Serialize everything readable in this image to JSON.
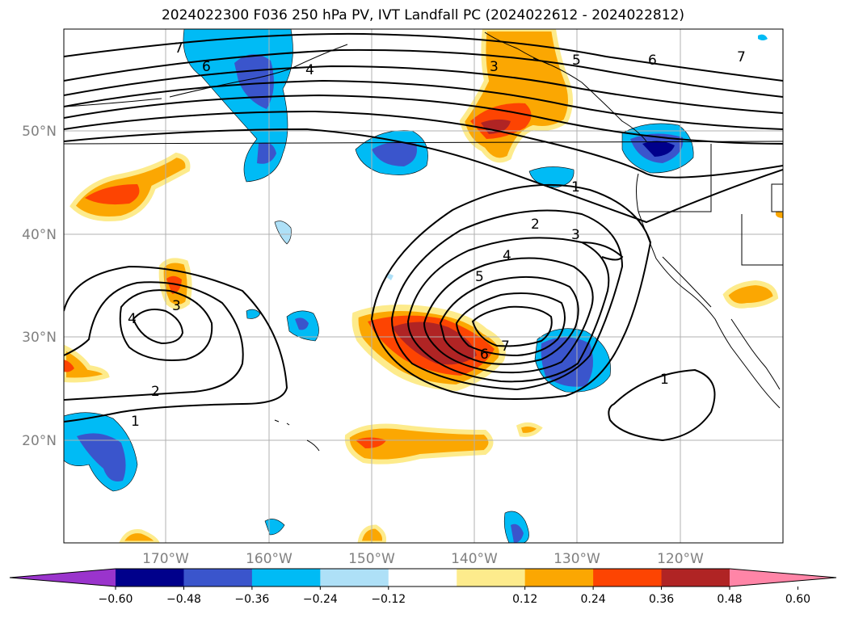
{
  "title": "2024022300 F036 250 hPa PV, IVT Landfall PC (2024022612 - 2024022812)",
  "lat_labels": [
    "50°N",
    "40°N",
    "30°N",
    "20°N"
  ],
  "lon_labels": [
    "170°W",
    "160°W",
    "150°W",
    "140°W",
    "130°W",
    "120°W"
  ],
  "colorbar": {
    "ticks": [
      "−0.60",
      "−0.48",
      "−0.36",
      "−0.24",
      "−0.12",
      "0.12",
      "0.24",
      "0.36",
      "0.48",
      "0.60"
    ],
    "colors": [
      "#9a34cc",
      "#00008b",
      "#3a55cc",
      "#00bbf5",
      "#aee0f7",
      "#ffffff",
      "#fdeb8c",
      "#fba702",
      "#fd4402",
      "#b02424",
      "#ff85a7"
    ]
  },
  "contour_labels": [
    "7",
    "6",
    "4",
    "3",
    "5",
    "6",
    "7",
    "1",
    "2",
    "3",
    "4",
    "5",
    "6",
    "7",
    "3",
    "4",
    "2",
    "1",
    "1"
  ],
  "colors": {
    "orange": "#fba702",
    "yellow": "#fdeb8c",
    "red": "#fd4402",
    "darkred": "#b02424",
    "cyan": "#00bbf5",
    "lightblue": "#aee0f7",
    "blue": "#3a55cc",
    "navy": "#00008b"
  }
}
